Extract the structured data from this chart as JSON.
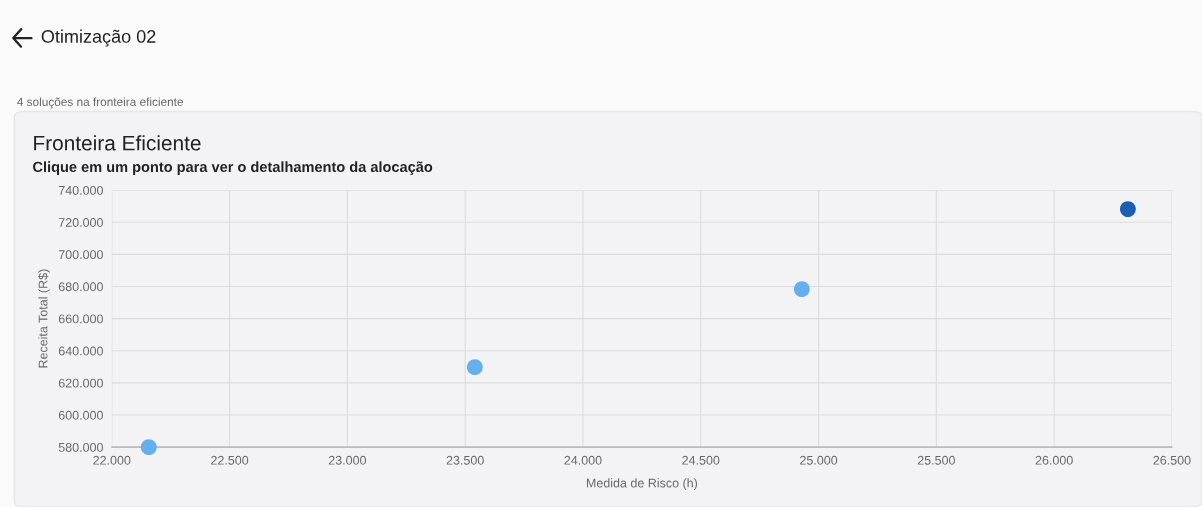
{
  "chart_data": {
    "type": "scatter",
    "title": "Fronteira Eficiente",
    "subtitle": "Clique em um ponto para ver o detalhamento da alocação",
    "xlabel": "Medida de Risco (h)",
    "ylabel": "Receita Total (R$)",
    "annotations": [
      "Otimização 02",
      "4 soluções na fronteira eficiente"
    ],
    "x": [
      22157,
      23541,
      24929,
      26313
    ],
    "values": [
      580000,
      629800,
      678400,
      728200
    ],
    "colors": [
      "#64b0ee",
      "#64b0ee",
      "#64b0ee",
      "#1a5fb4"
    ],
    "marker": "circle",
    "grid": true,
    "xlim": [
      22000,
      26500
    ],
    "xticks": [
      {
        "value": 22000,
        "label": "22.000"
      },
      {
        "value": 22500,
        "label": "22.500"
      },
      {
        "value": 23000,
        "label": "23.000"
      },
      {
        "value": 23500,
        "label": "23.500"
      },
      {
        "value": 24000,
        "label": "24.000"
      },
      {
        "value": 24500,
        "label": "24.500"
      },
      {
        "value": 25000,
        "label": "25.000"
      },
      {
        "value": 25500,
        "label": "25.500"
      },
      {
        "value": 26000,
        "label": "26.000"
      },
      {
        "value": 26500,
        "label": "26.500"
      }
    ],
    "ylim": [
      580000,
      740000
    ],
    "yticks": [
      {
        "value": 580000,
        "label": "580.000"
      },
      {
        "value": 600000,
        "label": "600.000"
      },
      {
        "value": 620000,
        "label": "620.000"
      },
      {
        "value": 640000,
        "label": "640.000"
      },
      {
        "value": 660000,
        "label": "660.000"
      },
      {
        "value": 680000,
        "label": "680.000"
      },
      {
        "value": 700000,
        "label": "700.000"
      },
      {
        "value": 720000,
        "label": "720.000"
      },
      {
        "value": 740000,
        "label": "740.000"
      }
    ]
  }
}
